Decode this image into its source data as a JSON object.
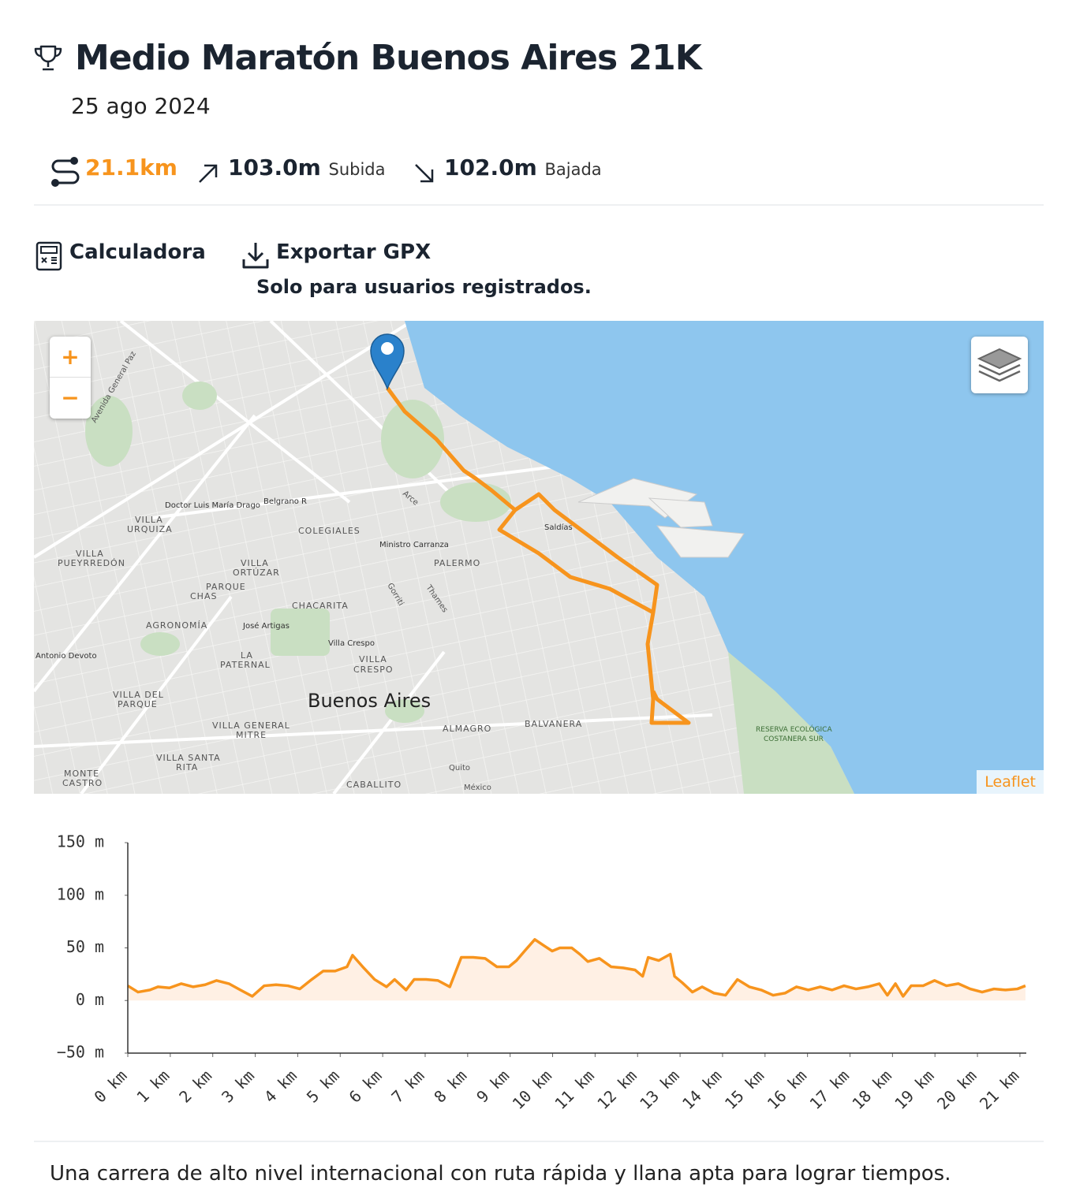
{
  "header": {
    "title": "Medio Maratón Buenos Aires 21K",
    "date": "25 ago 2024"
  },
  "stats": {
    "distance": "21.1km",
    "ascent": "103.0m",
    "ascent_label": "Subida",
    "descent": "102.0m",
    "descent_label": "Bajada"
  },
  "actions": {
    "calculator": "Calculadora",
    "export": "Exportar GPX",
    "export_note": "Solo para usuarios registrados."
  },
  "map": {
    "zoom_in": "+",
    "zoom_out": "−",
    "attribution": "Leaflet",
    "labels": [
      "Buenos Aires",
      "PALERMO",
      "COLEGIALES",
      "CHACARITA",
      "VILLA",
      "CRESPO",
      "ALMAGRO",
      "BALVANERA",
      "CABALLITO",
      "AGRONOMÍA",
      "PARQUE",
      "CHAS",
      "VILLA",
      "URQUIZA",
      "VILLA",
      "ORTÚZAR",
      "LA",
      "PATERNAL",
      "VILLA DEL",
      "PARQUE",
      "VILLA GENERAL",
      "MITRE",
      "VILLA SANTA",
      "RITA",
      "MONTE",
      "CASTRO",
      "VILLA",
      "PUEYRREDÓN",
      "Saldías",
      "Ministro Carranza",
      "Belgrano R",
      "Doctor Luis María Drago",
      "José Artigas",
      "Villa Crespo",
      "Antonio Devoto",
      "RESERVA ECOLÓGICA",
      "COSTANERA SUR",
      "Quito",
      "México",
      "Thames",
      "Gorriti",
      "Arce",
      "Avenida General Paz"
    ]
  },
  "chart_data": {
    "type": "line",
    "x": [
      0,
      0.24,
      0.52,
      0.71,
      0.98,
      1.26,
      1.54,
      1.82,
      2.09,
      2.38,
      2.65,
      2.93,
      3.21,
      3.49,
      3.77,
      4.05,
      4.33,
      4.6,
      4.88,
      5.16,
      5.29,
      5.53,
      5.81,
      6.09,
      6.28,
      6.55,
      6.74,
      7.02,
      7.3,
      7.58,
      7.85,
      8.13,
      8.41,
      8.69,
      8.97,
      9.15,
      9.34,
      9.58,
      9.8,
      9.99,
      10.17,
      10.45,
      10.64,
      10.83,
      11.1,
      11.38,
      11.66,
      11.94,
      12.12,
      12.25,
      12.5,
      12.77,
      12.87,
      13.05,
      13.29,
      13.52,
      13.8,
      14.07,
      14.35,
      14.63,
      14.91,
      15.19,
      15.47,
      15.74,
      16.02,
      16.3,
      16.58,
      16.86,
      17.14,
      17.42,
      17.69,
      17.88,
      18.07,
      18.25,
      18.44,
      18.72,
      18.99,
      19.27,
      19.55,
      19.83,
      20.11,
      20.39,
      20.66,
      20.94,
      21.13
    ],
    "values": [
      14,
      8,
      10,
      13,
      12,
      16,
      13,
      15,
      19,
      16,
      10,
      4,
      14,
      15,
      14,
      11,
      20,
      28,
      28,
      32,
      43,
      32,
      20,
      13,
      20,
      10,
      20,
      20,
      19,
      13,
      41,
      41,
      40,
      32,
      32,
      38,
      47,
      58,
      52,
      47,
      50,
      50,
      44,
      37,
      40,
      32,
      31,
      29,
      23,
      41,
      38,
      44,
      23,
      17,
      8,
      13,
      7,
      5,
      20,
      13,
      10,
      5,
      7,
      13,
      10,
      13,
      10,
      14,
      11,
      13,
      16,
      5,
      16,
      4,
      14,
      14,
      19,
      14,
      16,
      11,
      8,
      11,
      10,
      11,
      14
    ],
    "color": "#f7941d",
    "area_color": "#fff0e4",
    "xlim": [
      0,
      21.15
    ],
    "ylim": [
      -50,
      150
    ],
    "xticks": [
      {
        "value": 0,
        "label": "0 km"
      },
      {
        "value": 1,
        "label": "1 km"
      },
      {
        "value": 2,
        "label": "2 km"
      },
      {
        "value": 3,
        "label": "3 km"
      },
      {
        "value": 4,
        "label": "4 km"
      },
      {
        "value": 5,
        "label": "5 km"
      },
      {
        "value": 6,
        "label": "6 km"
      },
      {
        "value": 7,
        "label": "7 km"
      },
      {
        "value": 8,
        "label": "8 km"
      },
      {
        "value": 9,
        "label": "9 km"
      },
      {
        "value": 10,
        "label": "10 km"
      },
      {
        "value": 11,
        "label": "11 km"
      },
      {
        "value": 12,
        "label": "12 km"
      },
      {
        "value": 13,
        "label": "13 km"
      },
      {
        "value": 14,
        "label": "14 km"
      },
      {
        "value": 15,
        "label": "15 km"
      },
      {
        "value": 16,
        "label": "16 km"
      },
      {
        "value": 17,
        "label": "17 km"
      },
      {
        "value": 18,
        "label": "18 km"
      },
      {
        "value": 19,
        "label": "19 km"
      },
      {
        "value": 20,
        "label": "20 km"
      },
      {
        "value": 21,
        "label": "21 km"
      }
    ],
    "yticks": [
      {
        "value": -50,
        "label": "−50 m"
      },
      {
        "value": 0,
        "label": "0 m"
      },
      {
        "value": 50,
        "label": "50 m"
      },
      {
        "value": 100,
        "label": "100 m"
      },
      {
        "value": 150,
        "label": "150 m"
      }
    ]
  },
  "description": "Una carrera de alto nivel internacional con ruta rápida y llana apta para lograr tiempos."
}
